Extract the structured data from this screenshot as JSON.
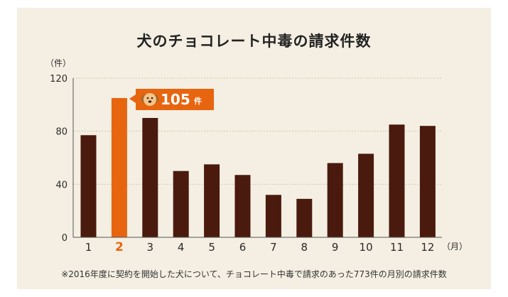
{
  "colors": {
    "bar": "#4a1a0e",
    "highlight": "#e8650f",
    "panel": "#f4efe2",
    "grid": "#cfc6b2"
  },
  "icons": {
    "callout": "dog-face-icon"
  },
  "footnote": "※2016年度に契約を開始した犬について、チョコレート中毒で請求のあった773件の月別の請求件数",
  "chart_data": {
    "type": "bar",
    "title": "犬のチョコレート中毒の請求件数",
    "ylabel": "（件）",
    "xlabel": "（月）",
    "categories": [
      "1",
      "2",
      "3",
      "4",
      "5",
      "6",
      "7",
      "8",
      "9",
      "10",
      "11",
      "12"
    ],
    "values": [
      77,
      105,
      90,
      50,
      55,
      47,
      32,
      29,
      56,
      63,
      85,
      84
    ],
    "ylim": [
      0,
      120
    ],
    "yticks": [
      0,
      40,
      80,
      120
    ],
    "highlight_index": 1,
    "callout": {
      "value": "105",
      "unit": "件"
    },
    "grid": true,
    "legend": "none"
  }
}
